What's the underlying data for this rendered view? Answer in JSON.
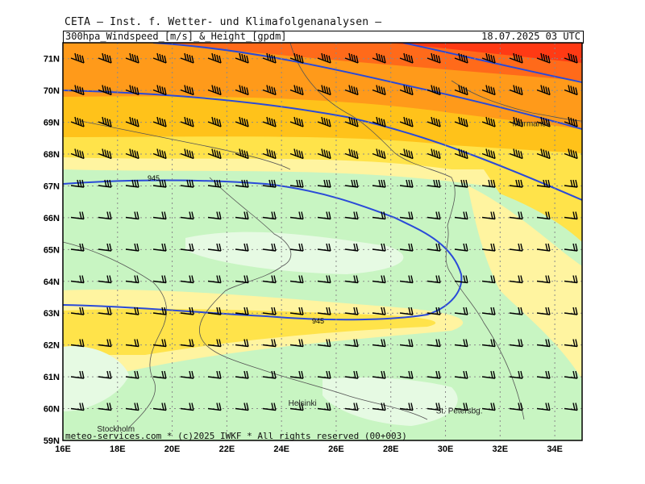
{
  "header": {
    "title": "CETA — Inst. f. Wetter- und Klimafolgenanalysen —",
    "product": "300hpa_Windspeed_[m/s]_&_Height_[gpdm]",
    "valid_time": "18.07.2025 03 UTC"
  },
  "footer": {
    "credit": "meteo-services.com * (c)2025 IWKF * All rights reserved (00+003)"
  },
  "map": {
    "lon_labels": [
      "16E",
      "18E",
      "20E",
      "22E",
      "24E",
      "26E",
      "28E",
      "30E",
      "32E",
      "34E"
    ],
    "lat_labels": [
      "71N",
      "70N",
      "69N",
      "68N",
      "67N",
      "66N",
      "65N",
      "64N",
      "63N",
      "62N",
      "61N",
      "60N",
      "59N"
    ],
    "lon_values": [
      16,
      18,
      20,
      22,
      24,
      26,
      28,
      30,
      32,
      34
    ],
    "lat_values": [
      71,
      70,
      69,
      68,
      67,
      66,
      65,
      64,
      63,
      62,
      61,
      60,
      59
    ],
    "lon_range": [
      16,
      35
    ],
    "lat_range": [
      59,
      71.5
    ],
    "contour_label": "945",
    "places": [
      {
        "name": "Murmansk",
        "lon": 33.1,
        "lat": 68.95
      },
      {
        "name": "Helsinki",
        "lon": 24.9,
        "lat": 60.17
      },
      {
        "name": "Stockholm",
        "lon": 17.9,
        "lat": 59.35
      },
      {
        "name": "St. Petersbg.",
        "lon": 30.3,
        "lat": 59.93
      }
    ],
    "colors": {
      "very_light_green": "#e6fae3",
      "light_green": "#c8f5c2",
      "pale_yellow": "#fff4a0",
      "yellow": "#ffe34a",
      "gold": "#ffc21a",
      "orange": "#ff9a1a",
      "dark_orange": "#ff6a1a",
      "red": "#ff3a14",
      "contour": "#2a4ad8",
      "coast": "#555555",
      "barb": "#000000"
    }
  }
}
